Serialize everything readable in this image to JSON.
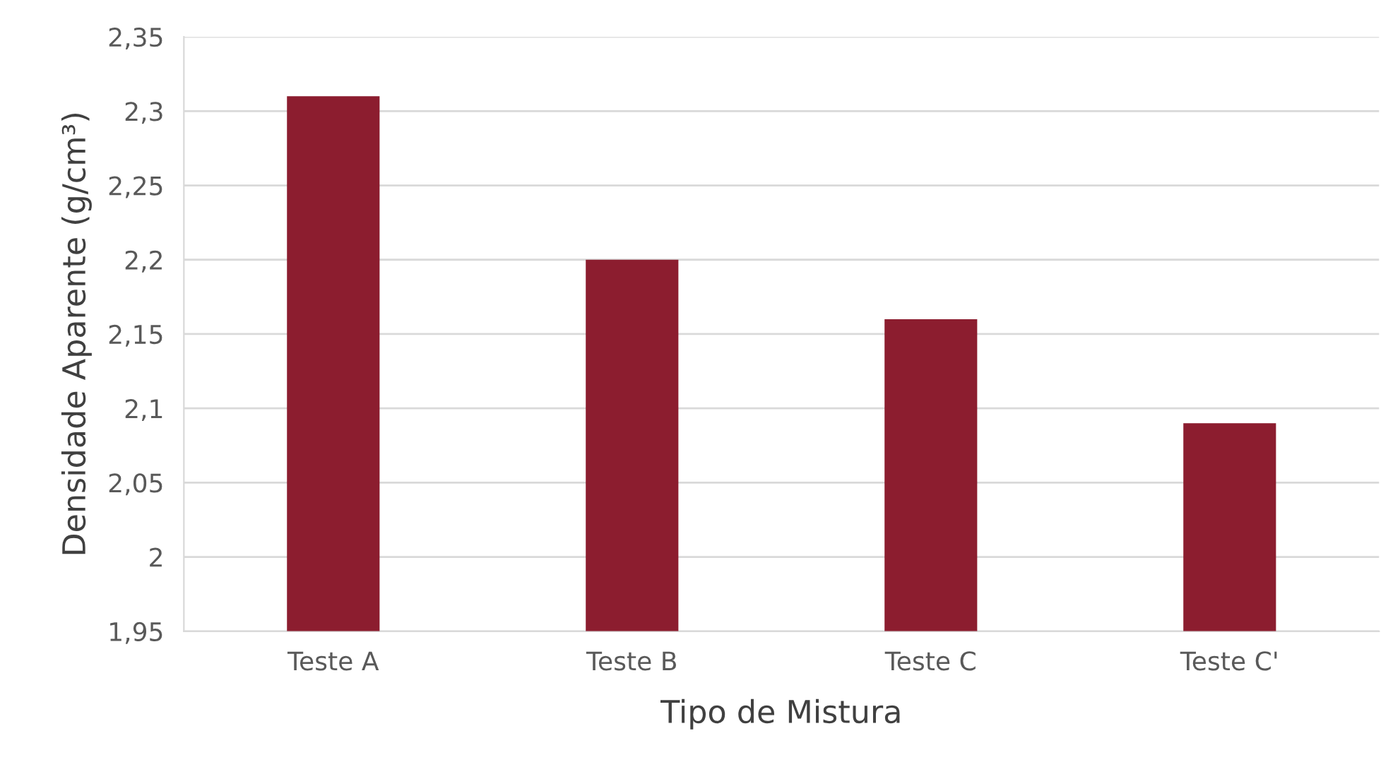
{
  "chart_data": {
    "type": "bar",
    "xlabel": "Tipo de Mistura",
    "ylabel": "Densidade Aparente (g/cm³)",
    "categories": [
      "Teste A",
      "Teste B",
      "Teste C",
      "Teste C'"
    ],
    "values": [
      2.31,
      2.2,
      2.16,
      2.09
    ],
    "color": "#8c1d2f",
    "ylim": [
      1.95,
      2.35
    ],
    "yticks": [
      {
        "value": 1.95,
        "label": "1,95"
      },
      2,
      {
        "value": 2.05,
        "label": "2,05"
      },
      {
        "value": 2.1,
        "label": "2,1"
      },
      {
        "value": 2.15,
        "label": "2,15"
      },
      {
        "value": 2.2,
        "label": "2,2"
      },
      {
        "value": 2.25,
        "label": "2,25"
      },
      {
        "value": 2.3,
        "label": "2,3"
      },
      {
        "value": 2.35,
        "label": "2,35"
      }
    ],
    "grid": "y",
    "legend": false
  }
}
